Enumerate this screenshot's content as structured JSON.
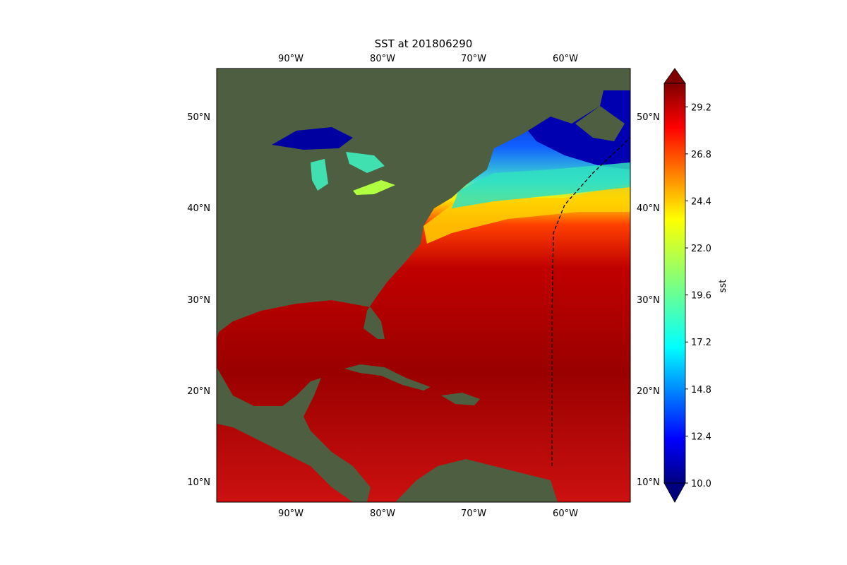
{
  "title": "SST at 201806290",
  "lon_labels": [
    "90°W",
    "80°W",
    "70°W",
    "60°W"
  ],
  "lat_labels": [
    "50°N",
    "40°N",
    "30°N",
    "20°N",
    "10°N"
  ],
  "colorbar": {
    "label": "sst",
    "ticks": [
      "29.2",
      "26.8",
      "24.4",
      "22.0",
      "19.6",
      "17.2",
      "14.8",
      "12.4",
      "10.0"
    ],
    "min": 10.0,
    "max": 30.4,
    "colormap": "jet"
  },
  "colors": {
    "land": "#4a5a3e",
    "ocean_tropical": "#8b0000",
    "ocean_warm": "#d40000",
    "gulf_stream_north": "#ffcc00",
    "cold_north": "#0000b0",
    "track_line": "#000000"
  }
}
